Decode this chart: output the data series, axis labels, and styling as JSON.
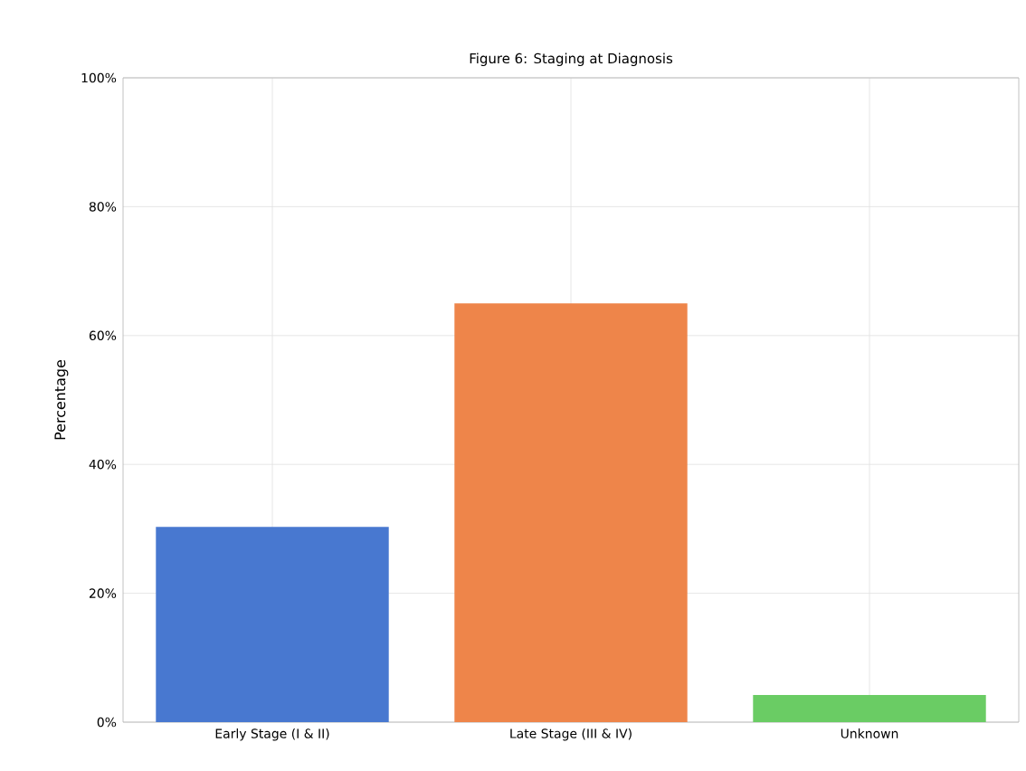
{
  "chart_data": {
    "type": "bar",
    "title": "Figure 6: Staging at Diagnosis",
    "ylabel": "Percentage",
    "categories": [
      "Early Stage (I & II)",
      "Late Stage (III & IV)",
      "Unknown"
    ],
    "values": [
      30.3,
      65,
      4.2
    ],
    "colors": [
      "#4878d0",
      "#ee854a",
      "#6acc64"
    ],
    "ylim": [
      0,
      100
    ],
    "yticks": [
      {
        "value": 0,
        "label": "0%"
      },
      {
        "value": 20,
        "label": "20%"
      },
      {
        "value": 40,
        "label": "40%"
      },
      {
        "value": 60,
        "label": "60%"
      },
      {
        "value": 80,
        "label": "80%"
      },
      {
        "value": 100,
        "label": "100%"
      }
    ],
    "grid": true
  }
}
